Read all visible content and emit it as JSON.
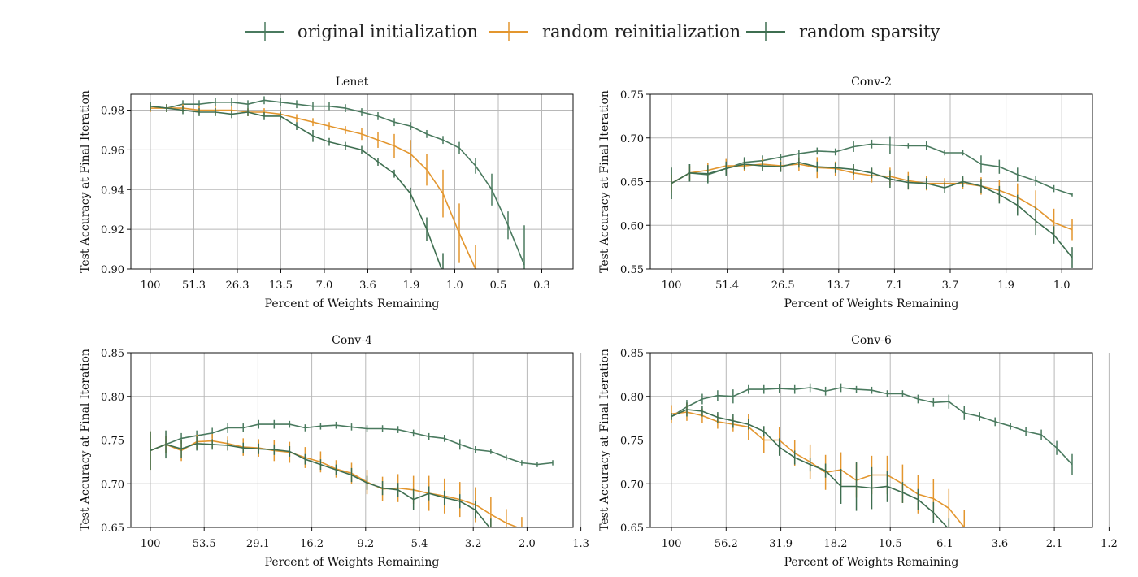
{
  "legend": [
    {
      "label": "original initialization",
      "color": "#4a7a5f"
    },
    {
      "label": "random reinitialization",
      "color": "#e3962e"
    },
    {
      "label": "random sparsity",
      "color": "#3e6e50"
    }
  ],
  "chart_data": [
    {
      "type": "line",
      "title": "Lenet",
      "xlabel": "Percent of Weights Remaining",
      "ylabel": "Test Accuracy at Final Iteration",
      "x_ticks": [
        "100",
        "51.3",
        "26.3",
        "13.5",
        "7.0",
        "3.6",
        "1.9",
        "1.0",
        "0.5",
        "0.3"
      ],
      "y_ticks": [
        "0.90",
        "0.92",
        "0.94",
        "0.96",
        "0.98"
      ],
      "ylim": [
        0.9,
        0.988
      ],
      "grid": true,
      "series": [
        {
          "name": "original initialization",
          "color": "#4a7a5f",
          "values": [
            0.982,
            0.981,
            0.983,
            0.983,
            0.984,
            0.984,
            0.983,
            0.985,
            0.984,
            0.983,
            0.982,
            0.982,
            0.981,
            0.979,
            0.977,
            0.974,
            0.972,
            0.968,
            0.965,
            0.961,
            0.952,
            0.94,
            0.922,
            0.902
          ],
          "errors": [
            0.002,
            0.002,
            0.002,
            0.002,
            0.002,
            0.002,
            0.002,
            0.002,
            0.002,
            0.002,
            0.002,
            0.002,
            0.002,
            0.002,
            0.002,
            0.002,
            0.002,
            0.002,
            0.002,
            0.003,
            0.004,
            0.008,
            0.007,
            0.02
          ]
        },
        {
          "name": "random reinitialization",
          "color": "#e3962e",
          "values": [
            0.981,
            0.981,
            0.981,
            0.98,
            0.98,
            0.98,
            0.979,
            0.979,
            0.978,
            0.976,
            0.974,
            0.972,
            0.97,
            0.968,
            0.965,
            0.962,
            0.958,
            0.95,
            0.938,
            0.918,
            0.9
          ],
          "errors": [
            0.002,
            0.002,
            0.002,
            0.002,
            0.002,
            0.002,
            0.002,
            0.002,
            0.002,
            0.002,
            0.002,
            0.002,
            0.002,
            0.003,
            0.004,
            0.006,
            0.007,
            0.008,
            0.012,
            0.015,
            0.012
          ]
        },
        {
          "name": "random sparsity",
          "color": "#3e6e50",
          "values": [
            0.982,
            0.981,
            0.98,
            0.979,
            0.979,
            0.978,
            0.979,
            0.977,
            0.977,
            0.972,
            0.967,
            0.964,
            0.962,
            0.96,
            0.954,
            0.948,
            0.938,
            0.92,
            0.898
          ],
          "errors": [
            0.002,
            0.002,
            0.002,
            0.002,
            0.002,
            0.002,
            0.002,
            0.002,
            0.002,
            0.002,
            0.003,
            0.002,
            0.002,
            0.002,
            0.002,
            0.002,
            0.003,
            0.006,
            0.01
          ]
        }
      ]
    },
    {
      "type": "line",
      "title": "Conv-2",
      "xlabel": "Percent of Weights Remaining",
      "ylabel": "Test Accuracy at Final Iteration",
      "x_ticks": [
        "100",
        "51.4",
        "26.5",
        "13.7",
        "7.1",
        "3.7",
        "1.9",
        "1.0"
      ],
      "y_ticks": [
        "0.55",
        "0.60",
        "0.65",
        "0.70",
        "0.75"
      ],
      "ylim": [
        0.55,
        0.75
      ],
      "grid": true,
      "series": [
        {
          "name": "original initialization",
          "color": "#4a7a5f",
          "values": [
            0.648,
            0.66,
            0.658,
            0.665,
            0.672,
            0.674,
            0.678,
            0.682,
            0.685,
            0.684,
            0.69,
            0.693,
            0.692,
            0.691,
            0.691,
            0.683,
            0.683,
            0.67,
            0.667,
            0.658,
            0.651,
            0.642,
            0.635
          ],
          "errors": [
            0.018,
            0.01,
            0.01,
            0.006,
            0.006,
            0.006,
            0.004,
            0.004,
            0.004,
            0.004,
            0.006,
            0.005,
            0.01,
            0.003,
            0.005,
            0.003,
            0.003,
            0.01,
            0.008,
            0.008,
            0.006,
            0.004,
            0.002
          ]
        },
        {
          "name": "random reinitialization",
          "color": "#e3962e",
          "values": [
            0.648,
            0.66,
            0.663,
            0.668,
            0.668,
            0.67,
            0.668,
            0.67,
            0.666,
            0.665,
            0.66,
            0.657,
            0.656,
            0.651,
            0.648,
            0.648,
            0.648,
            0.645,
            0.64,
            0.632,
            0.62,
            0.603,
            0.595
          ],
          "errors": [
            0.01,
            0.008,
            0.008,
            0.008,
            0.006,
            0.006,
            0.006,
            0.008,
            0.012,
            0.008,
            0.008,
            0.008,
            0.01,
            0.01,
            0.008,
            0.006,
            0.006,
            0.01,
            0.012,
            0.016,
            0.02,
            0.016,
            0.012
          ]
        },
        {
          "name": "random sparsity",
          "color": "#3e6e50",
          "values": [
            0.648,
            0.66,
            0.659,
            0.665,
            0.67,
            0.668,
            0.667,
            0.672,
            0.667,
            0.666,
            0.664,
            0.66,
            0.653,
            0.649,
            0.648,
            0.643,
            0.65,
            0.645,
            0.635,
            0.623,
            0.605,
            0.589,
            0.563
          ],
          "errors": [
            0.018,
            0.01,
            0.01,
            0.008,
            0.006,
            0.006,
            0.006,
            0.006,
            0.006,
            0.006,
            0.006,
            0.006,
            0.01,
            0.008,
            0.006,
            0.006,
            0.006,
            0.008,
            0.01,
            0.012,
            0.016,
            0.01,
            0.012
          ]
        }
      ]
    },
    {
      "type": "line",
      "title": "Conv-4",
      "xlabel": "Percent of Weights Remaining",
      "ylabel": "Test Accuracy at Final Iteration",
      "x_ticks": [
        "100",
        "53.5",
        "29.1",
        "16.2",
        "9.2",
        "5.4",
        "3.2",
        "2.0",
        "1.3"
      ],
      "y_ticks": [
        "0.65",
        "0.70",
        "0.75",
        "0.80",
        "0.85"
      ],
      "ylim": [
        0.65,
        0.85
      ],
      "grid": true,
      "series": [
        {
          "name": "original initialization",
          "color": "#4a7a5f",
          "values": [
            0.738,
            0.745,
            0.752,
            0.755,
            0.758,
            0.764,
            0.764,
            0.768,
            0.768,
            0.768,
            0.764,
            0.766,
            0.767,
            0.765,
            0.763,
            0.763,
            0.762,
            0.758,
            0.754,
            0.752,
            0.745,
            0.739,
            0.737,
            0.73,
            0.724,
            0.722,
            0.724
          ],
          "errors": [
            0.022,
            0.01,
            0.006,
            0.006,
            0.006,
            0.006,
            0.005,
            0.005,
            0.005,
            0.004,
            0.004,
            0.004,
            0.004,
            0.004,
            0.004,
            0.004,
            0.004,
            0.004,
            0.004,
            0.004,
            0.006,
            0.004,
            0.003,
            0.003,
            0.003,
            0.003,
            0.003
          ]
        },
        {
          "name": "random reinitialization",
          "color": "#e3962e",
          "values": [
            0.738,
            0.745,
            0.738,
            0.748,
            0.749,
            0.746,
            0.742,
            0.741,
            0.738,
            0.736,
            0.73,
            0.725,
            0.717,
            0.712,
            0.702,
            0.694,
            0.695,
            0.693,
            0.689,
            0.686,
            0.682,
            0.676,
            0.665,
            0.655,
            0.648
          ],
          "errors": [
            0.022,
            0.01,
            0.012,
            0.008,
            0.008,
            0.008,
            0.01,
            0.01,
            0.012,
            0.012,
            0.012,
            0.012,
            0.01,
            0.012,
            0.014,
            0.014,
            0.016,
            0.016,
            0.02,
            0.02,
            0.02,
            0.02,
            0.02,
            0.016,
            0.014
          ]
        },
        {
          "name": "random sparsity",
          "color": "#3e6e50",
          "values": [
            0.738,
            0.745,
            0.74,
            0.746,
            0.745,
            0.744,
            0.741,
            0.74,
            0.739,
            0.737,
            0.728,
            0.722,
            0.716,
            0.71,
            0.701,
            0.695,
            0.693,
            0.682,
            0.689,
            0.684,
            0.68,
            0.67,
            0.648
          ],
          "errors": [
            0.022,
            0.016,
            0.01,
            0.008,
            0.006,
            0.006,
            0.006,
            0.006,
            0.006,
            0.006,
            0.006,
            0.006,
            0.006,
            0.008,
            0.008,
            0.008,
            0.008,
            0.012,
            0.008,
            0.008,
            0.008,
            0.01,
            0.012
          ]
        }
      ]
    },
    {
      "type": "line",
      "title": "Conv-6",
      "xlabel": "Percent of Weights Remaining",
      "ylabel": "Test Accuracy at Final Iteration",
      "x_ticks": [
        "100",
        "56.2",
        "31.9",
        "18.2",
        "10.5",
        "6.1",
        "3.6",
        "2.1",
        "1.2"
      ],
      "y_ticks": [
        "0.65",
        "0.70",
        "0.75",
        "0.80",
        "0.85"
      ],
      "ylim": [
        0.65,
        0.85
      ],
      "grid": true,
      "series": [
        {
          "name": "original initialization",
          "color": "#4a7a5f",
          "values": [
            0.777,
            0.788,
            0.797,
            0.801,
            0.8,
            0.808,
            0.808,
            0.809,
            0.808,
            0.81,
            0.806,
            0.81,
            0.808,
            0.807,
            0.803,
            0.803,
            0.797,
            0.793,
            0.794,
            0.781,
            0.777,
            0.771,
            0.766,
            0.76,
            0.756,
            0.741,
            0.722
          ],
          "errors": [
            0.004,
            0.008,
            0.006,
            0.006,
            0.008,
            0.005,
            0.005,
            0.005,
            0.005,
            0.005,
            0.005,
            0.005,
            0.004,
            0.004,
            0.004,
            0.004,
            0.005,
            0.005,
            0.008,
            0.008,
            0.005,
            0.005,
            0.004,
            0.005,
            0.006,
            0.008,
            0.012
          ]
        },
        {
          "name": "random reinitialization",
          "color": "#e3962e",
          "values": [
            0.78,
            0.782,
            0.778,
            0.771,
            0.768,
            0.765,
            0.75,
            0.75,
            0.735,
            0.725,
            0.713,
            0.716,
            0.704,
            0.71,
            0.71,
            0.7,
            0.688,
            0.683,
            0.672,
            0.65
          ],
          "errors": [
            0.01,
            0.01,
            0.008,
            0.008,
            0.008,
            0.015,
            0.015,
            0.015,
            0.015,
            0.02,
            0.02,
            0.02,
            0.02,
            0.022,
            0.022,
            0.022,
            0.022,
            0.022,
            0.022,
            0.02
          ]
        },
        {
          "name": "random sparsity",
          "color": "#3e6e50",
          "values": [
            0.777,
            0.785,
            0.783,
            0.776,
            0.772,
            0.768,
            0.76,
            0.742,
            0.73,
            0.722,
            0.715,
            0.697,
            0.697,
            0.695,
            0.697,
            0.69,
            0.682,
            0.667,
            0.648
          ],
          "errors": [
            0.004,
            0.008,
            0.006,
            0.006,
            0.008,
            0.006,
            0.006,
            0.01,
            0.008,
            0.008,
            0.008,
            0.02,
            0.028,
            0.024,
            0.018,
            0.012,
            0.012,
            0.012,
            0.012
          ]
        }
      ]
    }
  ]
}
